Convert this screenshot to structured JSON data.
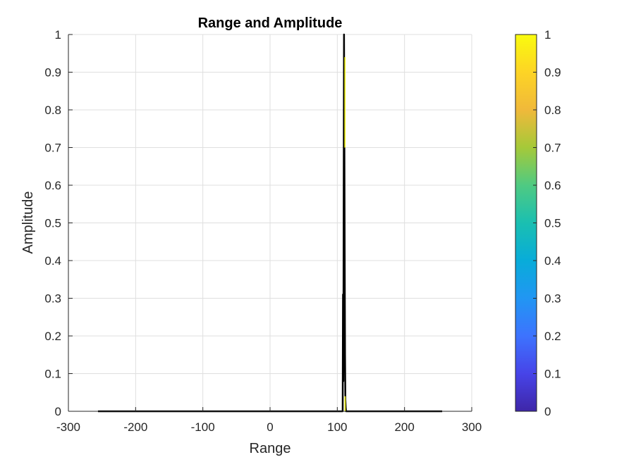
{
  "chart_data": {
    "type": "line",
    "title": "Range and Amplitude",
    "xlabel": "Range",
    "ylabel": "Amplitude",
    "xlim": [
      -300,
      300
    ],
    "ylim": [
      0,
      1
    ],
    "xticks": [
      -300,
      -200,
      -100,
      0,
      100,
      200,
      300
    ],
    "yticks": [
      0,
      0.1,
      0.2,
      0.3,
      0.4,
      0.5,
      0.6,
      0.7,
      0.8,
      0.9,
      1
    ],
    "grid": true,
    "colorbar": {
      "limits": [
        0,
        1
      ],
      "ticks": [
        0,
        0.1,
        0.2,
        0.3,
        0.4,
        0.5,
        0.6,
        0.7,
        0.8,
        0.9,
        1
      ],
      "colormap": "parula",
      "colors": [
        "#3e26a8",
        "#4744e8",
        "#3d73fe",
        "#2196f3",
        "#08acd9",
        "#1abfb1",
        "#4fca82",
        "#a5c939",
        "#f0b93a",
        "#fdd425",
        "#f9fb0e"
      ]
    },
    "series": [
      {
        "color": "#000000",
        "x": [
          -256,
          108,
          108.5,
          109,
          109.5,
          110,
          110.5,
          111,
          111.5,
          112,
          112.5,
          113,
          256
        ],
        "y": [
          0,
          0,
          0.31,
          0.08,
          0.56,
          1,
          0.74,
          0.42,
          0.15,
          0.03,
          0.01,
          0,
          0
        ]
      },
      {
        "color": "#f9fb0e",
        "x": [
          111.4,
          111.4
        ],
        "y": [
          0.7,
          0.94
        ]
      },
      {
        "color": "#f9fb0e",
        "x": [
          111.6,
          111.6
        ],
        "y": [
          0.0,
          0.04
        ]
      }
    ]
  }
}
